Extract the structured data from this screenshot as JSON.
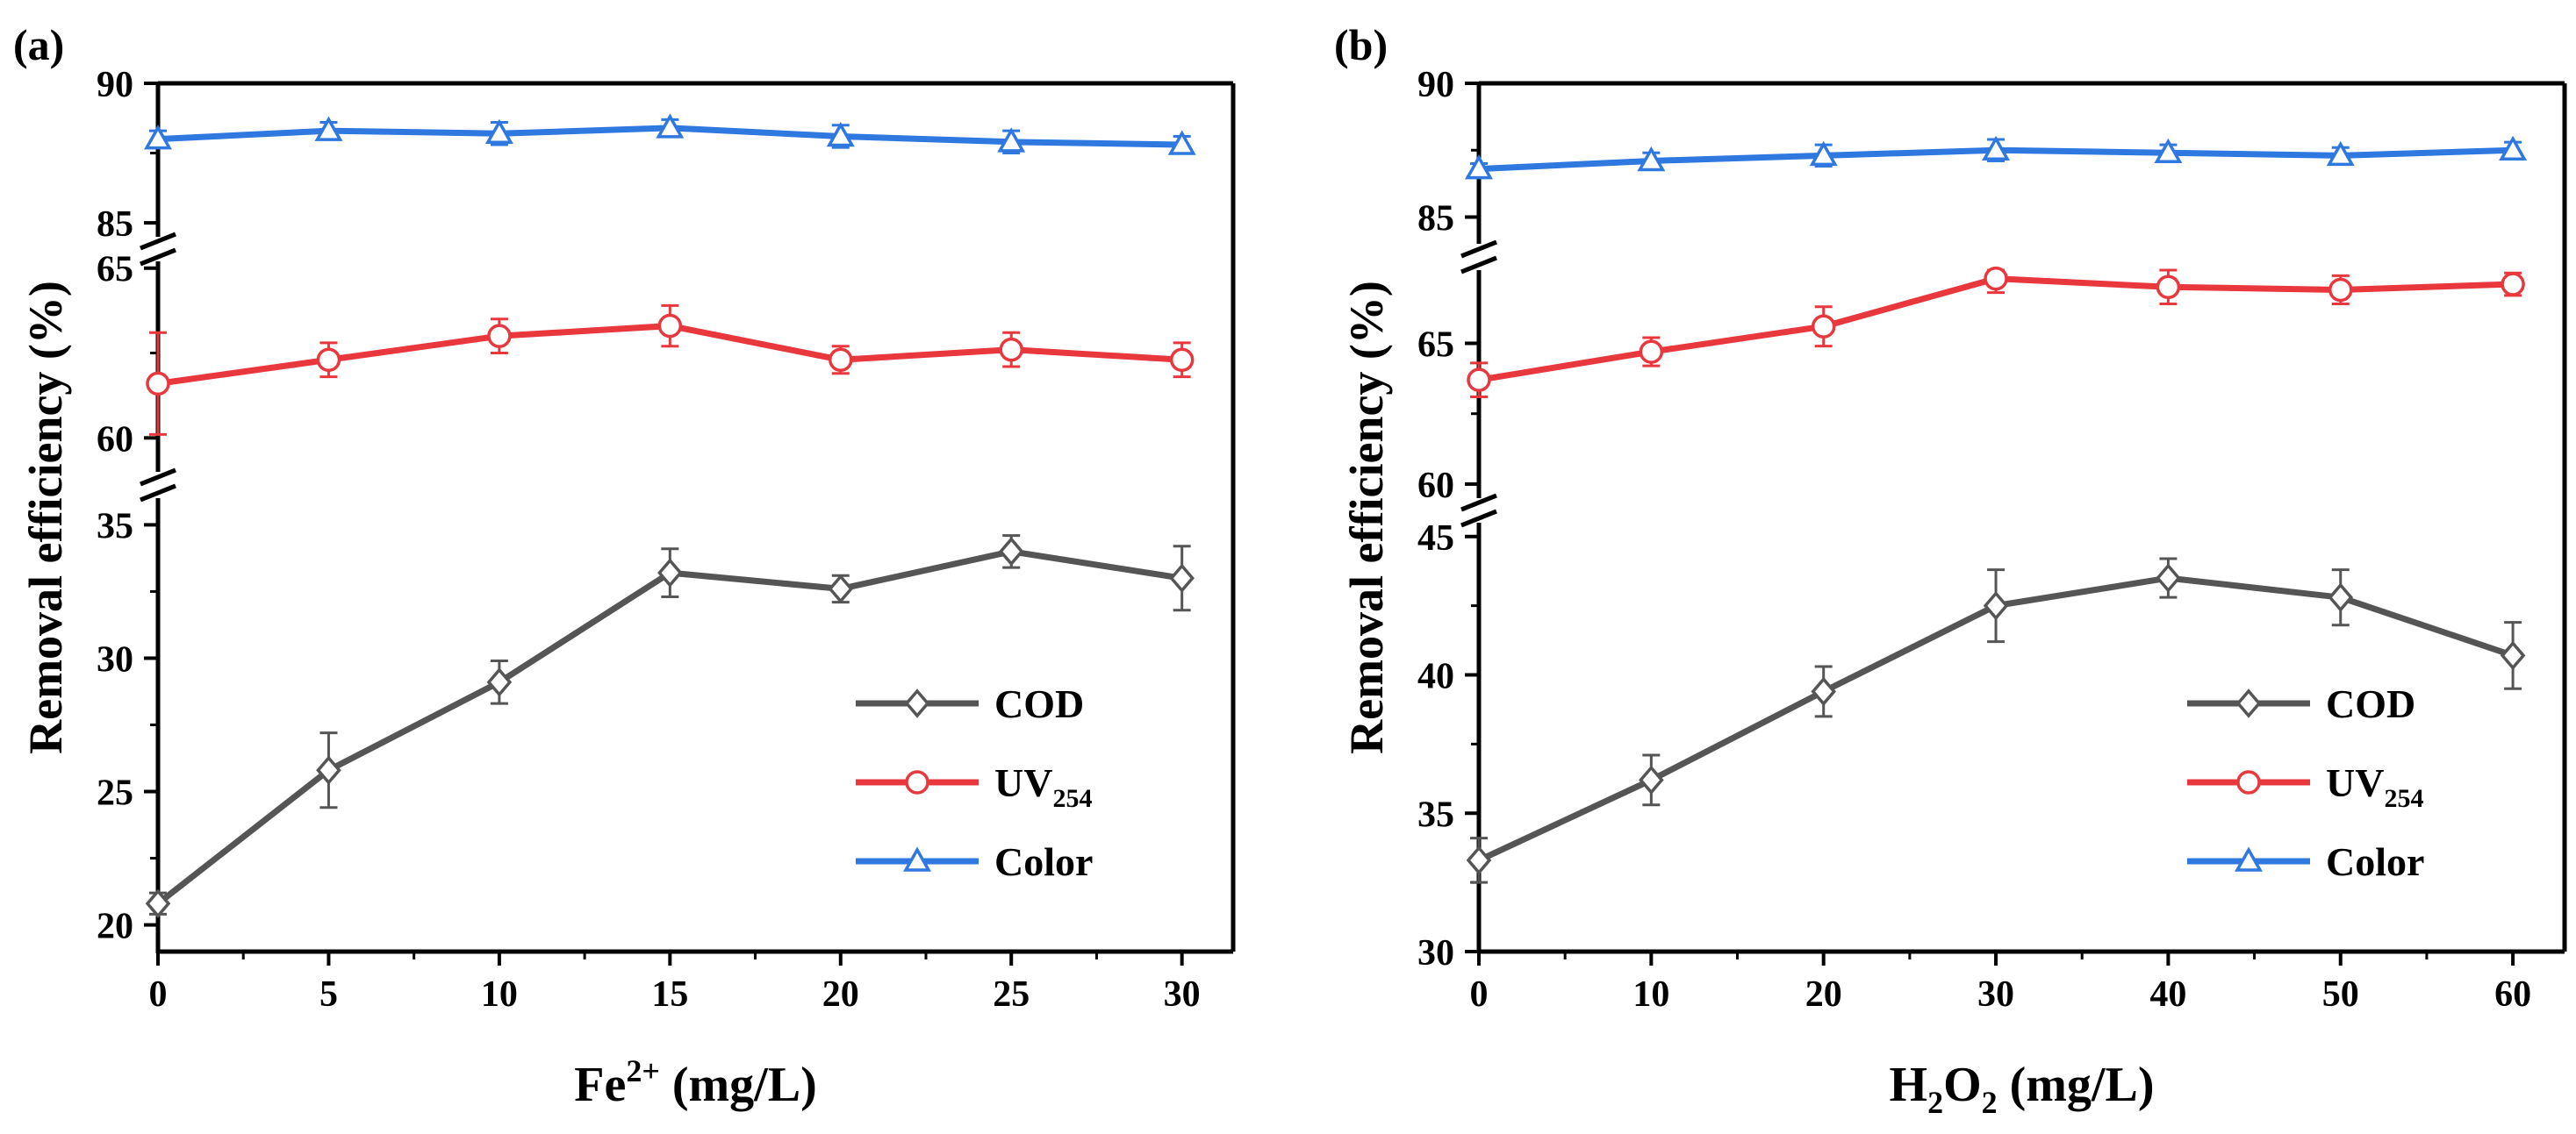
{
  "chart_data": [
    {
      "panel_label": "(a)",
      "type": "line",
      "xlabel": "Fe",
      "xlabel_sup": "2+",
      "xlabel_unit": " (mg/L)",
      "ylabel": "Removal efficiency (%)",
      "x": [
        0,
        5,
        10,
        15,
        20,
        25,
        30
      ],
      "x_ticks": [
        "0",
        "5",
        "10",
        "15",
        "20",
        "25",
        "30"
      ],
      "xlim": [
        0,
        31.5
      ],
      "segments": [
        {
          "range": [
            19,
            36
          ],
          "ticks": [
            20,
            25,
            30,
            35
          ]
        },
        {
          "range": [
            59,
            65.2
          ],
          "ticks": [
            60,
            65
          ]
        },
        {
          "range": [
            84.5,
            90
          ],
          "ticks": [
            85,
            90
          ]
        }
      ],
      "series": [
        {
          "name": "COD",
          "marker": "diamond",
          "color": "#555555",
          "values": [
            20.8,
            25.8,
            29.1,
            33.2,
            32.6,
            34.0,
            33.0
          ],
          "errors": [
            0.4,
            1.4,
            0.8,
            0.9,
            0.5,
            0.6,
            1.2
          ]
        },
        {
          "name": "UV",
          "name_sub": "254",
          "marker": "circle",
          "color": "#e8383d",
          "values": [
            61.6,
            62.3,
            63.0,
            63.3,
            62.3,
            62.6,
            62.3
          ],
          "errors": [
            1.5,
            0.5,
            0.5,
            0.6,
            0.4,
            0.5,
            0.5
          ]
        },
        {
          "name": "Color",
          "marker": "triangle",
          "color": "#2f78e0",
          "values": [
            88.0,
            88.3,
            88.2,
            88.4,
            88.1,
            87.9,
            87.8
          ],
          "errors": [
            0.3,
            0.3,
            0.4,
            0.3,
            0.4,
            0.4,
            0.3
          ]
        }
      ],
      "legend_position": "lower-right"
    },
    {
      "panel_label": "(b)",
      "type": "line",
      "xlabel": "H",
      "xlabel_sub": "2",
      "xlabel_mid": "O",
      "xlabel_sub2": "2",
      "xlabel_unit": " (mg/L)",
      "ylabel": "Removal efficiency (%)",
      "x": [
        0,
        10,
        20,
        30,
        40,
        50,
        60
      ],
      "x_ticks": [
        "0",
        "10",
        "20",
        "30",
        "40",
        "50",
        "60"
      ],
      "xlim": [
        0,
        63
      ],
      "segments": [
        {
          "range": [
            30,
            45.5
          ],
          "ticks": [
            30,
            35,
            40,
            45
          ]
        },
        {
          "range": [
            59.5,
            67.6
          ],
          "ticks": [
            60,
            65
          ]
        },
        {
          "range": [
            84,
            90
          ],
          "ticks": [
            85,
            90
          ]
        }
      ],
      "series": [
        {
          "name": "COD",
          "marker": "diamond",
          "color": "#555555",
          "values": [
            33.3,
            36.2,
            39.4,
            42.5,
            43.5,
            42.8,
            40.7
          ],
          "errors": [
            0.8,
            0.9,
            0.9,
            1.3,
            0.7,
            1.0,
            1.2
          ]
        },
        {
          "name": "UV",
          "name_sub": "254",
          "marker": "circle",
          "color": "#e8383d",
          "values": [
            63.7,
            64.7,
            65.6,
            67.3,
            67.0,
            66.9,
            67.1
          ],
          "errors": [
            0.6,
            0.5,
            0.7,
            0.5,
            0.6,
            0.5,
            0.4
          ]
        },
        {
          "name": "Color",
          "marker": "triangle",
          "color": "#2f78e0",
          "values": [
            86.8,
            87.1,
            87.3,
            87.5,
            87.4,
            87.3,
            87.5
          ],
          "errors": [
            0.2,
            0.3,
            0.4,
            0.4,
            0.3,
            0.3,
            0.3
          ]
        }
      ],
      "legend_position": "lower-right"
    }
  ]
}
